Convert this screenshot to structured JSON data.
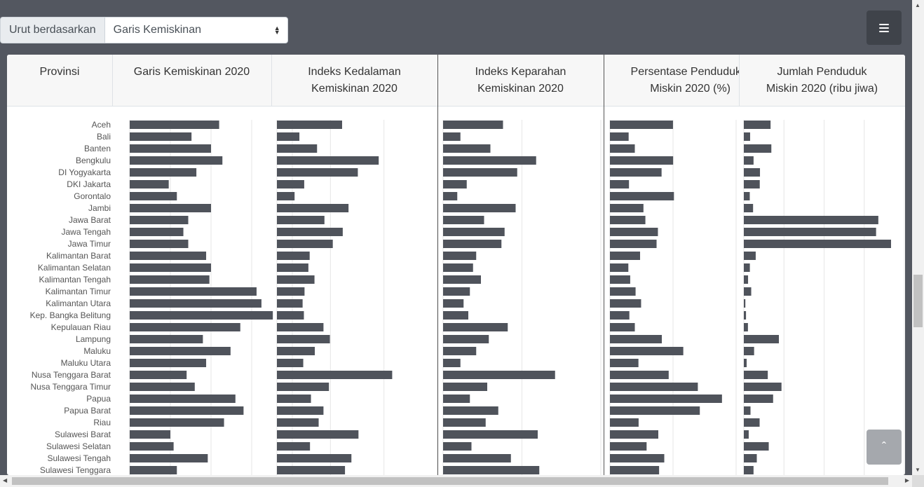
{
  "sort": {
    "label": "Urut berdasarkan",
    "selected": "Garis Kemiskinan"
  },
  "colors": {
    "bar": "#4f535b",
    "grid": "#e6e6e6",
    "text": "#555"
  },
  "chart_data": {
    "type": "bar",
    "orientation": "horizontal",
    "category_header": "Provinsi",
    "categories": [
      "Aceh",
      "Bali",
      "Banten",
      "Bengkulu",
      "DI Yogyakarta",
      "DKI Jakarta",
      "Gorontalo",
      "Jambi",
      "Jawa Barat",
      "Jawa Tengah",
      "Jawa Timur",
      "Kalimantan Barat",
      "Kalimantan Selatan",
      "Kalimantan Tengah",
      "Kalimantan Timur",
      "Kalimantan Utara",
      "Kep. Bangka Belitung",
      "Kepulauan Riau",
      "Lampung",
      "Maluku",
      "Maluku Utara",
      "Nusa Tenggara Barat",
      "Nusa Tenggara Timur",
      "Papua",
      "Papua Barat",
      "Riau",
      "Sulawesi Barat",
      "Sulawesi Selatan",
      "Sulawesi Tengah",
      "Sulawesi Tenggara"
    ],
    "grid": true,
    "series": [
      {
        "name": "Garis Kemiskinan 2020",
        "header_lines": [
          "Garis Kemiskinan 2020"
        ],
        "max": 1000,
        "values": [
          550,
          380,
          500,
          570,
          410,
          240,
          290,
          500,
          360,
          330,
          360,
          470,
          500,
          490,
          780,
          810,
          880,
          680,
          450,
          620,
          470,
          350,
          400,
          650,
          700,
          580,
          250,
          270,
          480,
          290
        ]
      },
      {
        "name": "Indeks Kedalaman Kemiskinan 2020",
        "header_lines": [
          "Indeks Kedalaman",
          "Kemiskinan 2020"
        ],
        "max": 5,
        "values": [
          2.03,
          0.7,
          1.25,
          3.17,
          2.52,
          0.85,
          0.55,
          2.23,
          1.48,
          2.05,
          1.74,
          1.02,
          0.98,
          1.17,
          0.86,
          0.8,
          0.84,
          1.45,
          1.65,
          1.18,
          0.82,
          3.59,
          1.62,
          1.06,
          1.45,
          1.3,
          2.54,
          1.03,
          2.32,
          2.12
        ]
      },
      {
        "name": "Indeks Keparahan Kemiskinan 2020",
        "header_lines": [
          "Indeks Keparahan",
          "Kemiskinan 2020"
        ],
        "max": 1,
        "values": [
          0.38,
          0.11,
          0.3,
          0.59,
          0.47,
          0.15,
          0.09,
          0.46,
          0.26,
          0.39,
          0.37,
          0.21,
          0.19,
          0.24,
          0.17,
          0.13,
          0.16,
          0.41,
          0.29,
          0.21,
          0.11,
          0.71,
          0.28,
          0.17,
          0.35,
          0.27,
          0.6,
          0.18,
          0.43,
          0.61
        ]
      },
      {
        "name": "Persentase Penduduk Miskin 2020 (%)",
        "header_lines": [
          "Persentase Penduduk",
          "Miskin 2020 (%)"
        ],
        "max": 30,
        "values": [
          14.99,
          4.45,
          5.92,
          15.03,
          12.28,
          4.53,
          15.22,
          7.97,
          8.43,
          11.41,
          11.09,
          7.17,
          4.38,
          4.82,
          6.1,
          7.41,
          4.62,
          5.92,
          12.34,
          17.44,
          6.78,
          13.97,
          20.9,
          26.64,
          21.37,
          6.82,
          11.5,
          8.72,
          12.92,
          11.69
        ]
      },
      {
        "name": "Jumlah Penduduk Miskin 2020 (ribu jiwa)",
        "header_lines": [
          "Jumlah Penduduk",
          "Miskin 2020 (ribu jiwa)"
        ],
        "max": 5000,
        "values": [
          833,
          196,
          857,
          303,
          503,
          496,
          185,
          288,
          4189,
          4119,
          4585,
          370,
          188,
          132,
          230,
          48,
          68,
          128,
          1092,
          320,
          88,
          746,
          1173,
          912,
          208,
          492,
          152,
          776,
          404,
          302
        ]
      }
    ]
  }
}
